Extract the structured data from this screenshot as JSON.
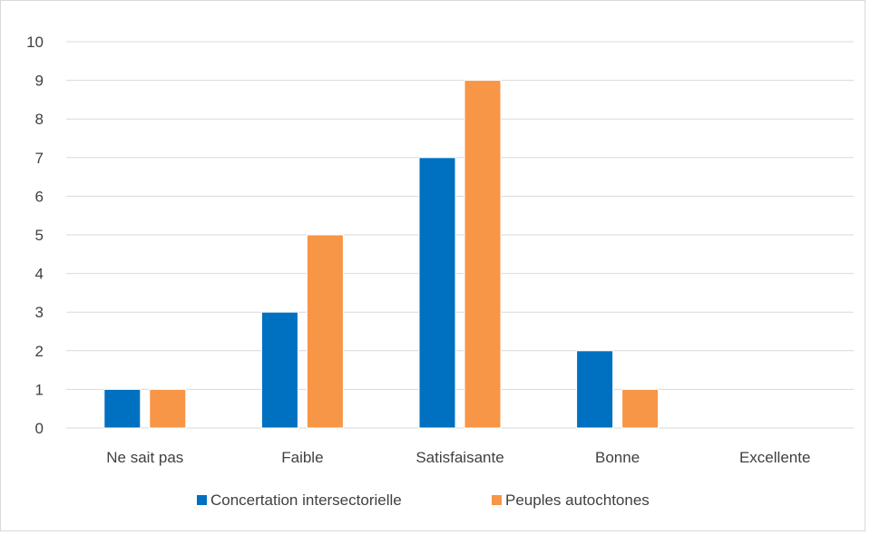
{
  "chart_data": {
    "type": "bar",
    "title": "",
    "xlabel": "",
    "ylabel": "",
    "categories": [
      "Ne sait pas",
      "Faible",
      "Satisfaisante",
      "Bonne",
      "Excellente"
    ],
    "series": [
      {
        "name": "Concertation intersectorielle",
        "color": "#0070c0",
        "values": [
          1,
          3,
          7,
          2,
          0
        ]
      },
      {
        "name": "Peuples autochtones",
        "color": "#f79646",
        "values": [
          1,
          5,
          9,
          1,
          0
        ]
      }
    ],
    "ylim": [
      0,
      10
    ],
    "yticks": [
      "0",
      "1",
      "2",
      "3",
      "4",
      "5",
      "6",
      "7",
      "8",
      "9",
      "10"
    ],
    "grid": true,
    "legend_position": "bottom",
    "colors": {
      "grid": "#d9d9d9",
      "axis_text": "#404040",
      "frame": "#d9d9d9"
    }
  }
}
